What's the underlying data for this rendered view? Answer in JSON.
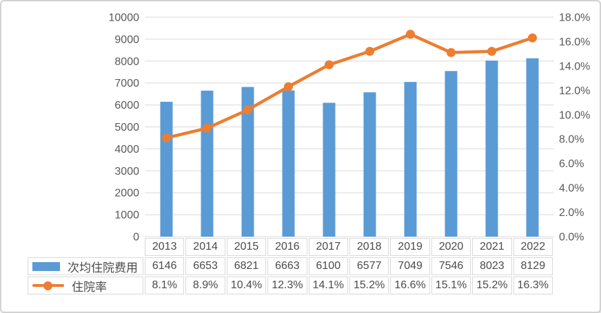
{
  "chart_data": {
    "type": "combo-bar-line",
    "categories": [
      "2013",
      "2014",
      "2015",
      "2016",
      "2017",
      "2018",
      "2019",
      "2020",
      "2021",
      "2022"
    ],
    "series": [
      {
        "name": "次均住院费用",
        "type": "bar",
        "axis": "left",
        "color": "#5B9BD5",
        "values": [
          6146,
          6653,
          6821,
          6663,
          6100,
          6577,
          7049,
          7546,
          8023,
          8129
        ],
        "display": [
          "6146",
          "6653",
          "6821",
          "6663",
          "6100",
          "6577",
          "7049",
          "7546",
          "8023",
          "8129"
        ]
      },
      {
        "name": "住院率",
        "type": "line",
        "axis": "right",
        "color": "#ED7D31",
        "values": [
          8.1,
          8.9,
          10.4,
          12.3,
          14.1,
          15.2,
          16.6,
          15.1,
          15.2,
          16.3
        ],
        "display": [
          "8.1%",
          "8.9%",
          "10.4%",
          "12.3%",
          "14.1%",
          "15.2%",
          "16.6%",
          "15.1%",
          "15.2%",
          "16.3%"
        ]
      }
    ],
    "left_axis": {
      "min": 0,
      "max": 10000,
      "step": 1000,
      "tick_labels": [
        "10000",
        "9000",
        "8000",
        "7000",
        "6000",
        "5000",
        "4000",
        "3000",
        "2000",
        "1000",
        "0"
      ]
    },
    "right_axis": {
      "min": 0,
      "max": 18,
      "step": 2,
      "tick_labels": [
        "18.0%",
        "16.0%",
        "14.0%",
        "12.0%",
        "10.0%",
        "8.0%",
        "6.0%",
        "4.0%",
        "2.0%",
        "0.0%"
      ]
    },
    "grid": true,
    "grid_color": "#d9d9d9",
    "axis_text_color": "#595959",
    "legend_position": "table-left",
    "title": ""
  }
}
